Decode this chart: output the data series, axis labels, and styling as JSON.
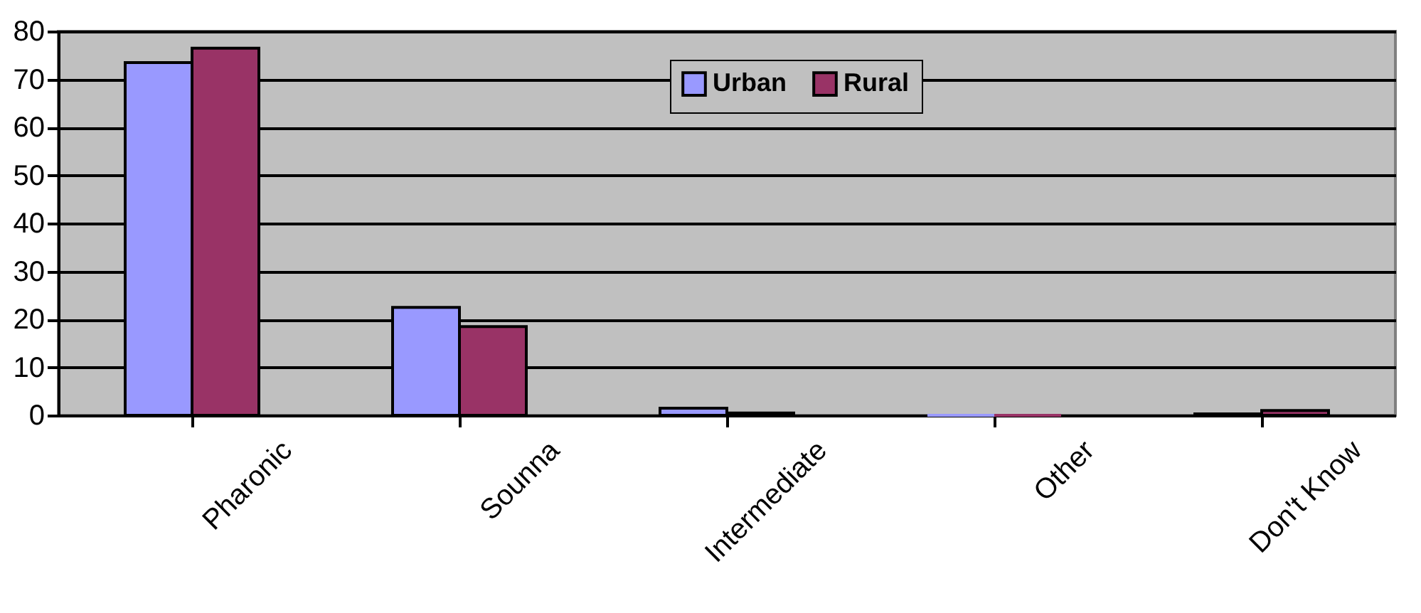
{
  "chart_data": {
    "type": "bar",
    "categories": [
      "Pharonic",
      "Sounna",
      "Intermediate",
      "Other",
      "Don't Know"
    ],
    "series": [
      {
        "name": "Urban",
        "color": "#9999ff",
        "values": [
          73.5,
          22.5,
          1.5,
          0,
          0.3
        ]
      },
      {
        "name": "Rural",
        "color": "#993366",
        "values": [
          76.5,
          18.5,
          0.5,
          0,
          1
        ]
      }
    ],
    "ylim": [
      0,
      80
    ],
    "yticks": [
      0,
      10,
      20,
      30,
      40,
      50,
      60,
      70,
      80
    ],
    "grid": "y",
    "legend": "top"
  }
}
